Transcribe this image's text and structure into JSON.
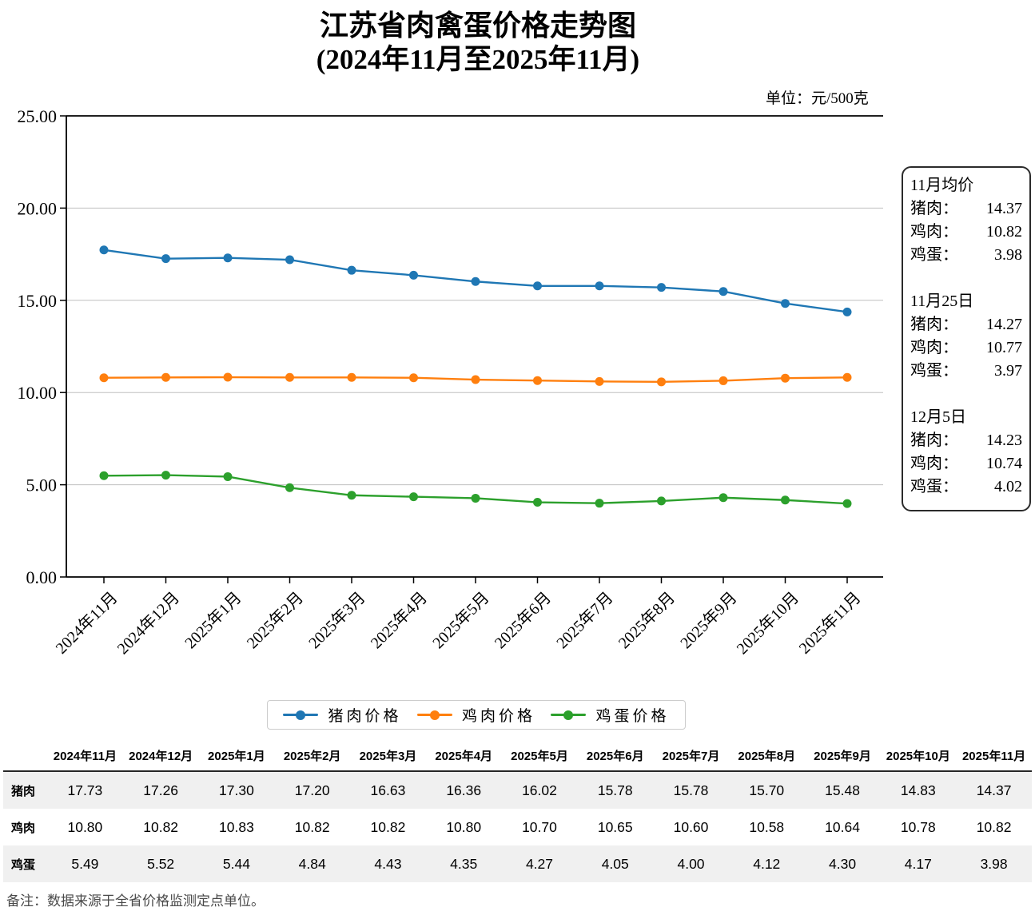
{
  "header": {
    "title": "江苏省肉禽蛋价格走势图",
    "subtitle": "(2024年11月至2025年11月)",
    "unit": "单位：元/500克"
  },
  "chart_data": {
    "type": "line",
    "title": "江苏省肉禽蛋价格走势图",
    "subtitle": "(2024年11月至2025年11月)",
    "unit_label": "单位：元/500克",
    "categories": [
      "2024年11月",
      "2024年12月",
      "2025年1月",
      "2025年2月",
      "2025年3月",
      "2025年4月",
      "2025年5月",
      "2025年6月",
      "2025年7月",
      "2025年8月",
      "2025年9月",
      "2025年10月",
      "2025年11月"
    ],
    "series": [
      {
        "name": "猪肉价格",
        "color": "#1f77b4",
        "values": [
          17.73,
          17.26,
          17.3,
          17.2,
          16.63,
          16.36,
          16.02,
          15.78,
          15.78,
          15.7,
          15.48,
          14.83,
          14.37
        ]
      },
      {
        "name": "鸡肉价格",
        "color": "#ff7f0e",
        "values": [
          10.8,
          10.82,
          10.83,
          10.82,
          10.82,
          10.8,
          10.7,
          10.65,
          10.6,
          10.58,
          10.64,
          10.78,
          10.82
        ]
      },
      {
        "name": "鸡蛋价格",
        "color": "#2ca02c",
        "values": [
          5.49,
          5.52,
          5.44,
          4.84,
          4.43,
          4.35,
          4.27,
          4.05,
          4.0,
          4.12,
          4.3,
          4.17,
          3.98
        ]
      }
    ],
    "ylim": [
      0,
      25
    ],
    "ytick_step": 5,
    "ytick_labels": [
      "0.00",
      "5.00",
      "10.00",
      "15.00",
      "20.00",
      "25.00"
    ],
    "grid": true,
    "gridline_color": "#bfbfbf",
    "legend_position": "bottom"
  },
  "side_panel": {
    "sections": [
      {
        "heading": "11月均价",
        "rows": [
          {
            "label": "猪肉：",
            "value": "14.37"
          },
          {
            "label": "鸡肉：",
            "value": "10.82"
          },
          {
            "label": "鸡蛋：",
            "value": "3.98"
          }
        ]
      },
      {
        "heading": "11月25日",
        "rows": [
          {
            "label": "猪肉：",
            "value": "14.27"
          },
          {
            "label": "鸡肉：",
            "value": "10.77"
          },
          {
            "label": "鸡蛋：",
            "value": "3.97"
          }
        ]
      },
      {
        "heading": "12月5日",
        "rows": [
          {
            "label": "猪肉：",
            "value": "14.23"
          },
          {
            "label": "鸡肉：",
            "value": "10.74"
          },
          {
            "label": "鸡蛋：",
            "value": "4.02"
          }
        ]
      }
    ]
  },
  "table": {
    "corner_label": "",
    "columns": [
      "2024年11月",
      "2024年12月",
      "2025年1月",
      "2025年2月",
      "2025年3月",
      "2025年4月",
      "2025年5月",
      "2025年6月",
      "2025年7月",
      "2025年8月",
      "2025年9月",
      "2025年10月",
      "2025年11月"
    ],
    "rows": [
      {
        "label": "猪肉",
        "values": [
          "17.73",
          "17.26",
          "17.30",
          "17.20",
          "16.63",
          "16.36",
          "16.02",
          "15.78",
          "15.78",
          "15.70",
          "15.48",
          "14.83",
          "14.37"
        ]
      },
      {
        "label": "鸡肉",
        "values": [
          "10.80",
          "10.82",
          "10.83",
          "10.82",
          "10.82",
          "10.80",
          "10.70",
          "10.65",
          "10.60",
          "10.58",
          "10.64",
          "10.78",
          "10.82"
        ]
      },
      {
        "label": "鸡蛋",
        "values": [
          "5.49",
          "5.52",
          "5.44",
          "4.84",
          "4.43",
          "4.35",
          "4.27",
          "4.05",
          "4.00",
          "4.12",
          "4.30",
          "4.17",
          "3.98"
        ]
      }
    ]
  },
  "footnote": "备注：数据来源于全省价格监测定点单位。"
}
